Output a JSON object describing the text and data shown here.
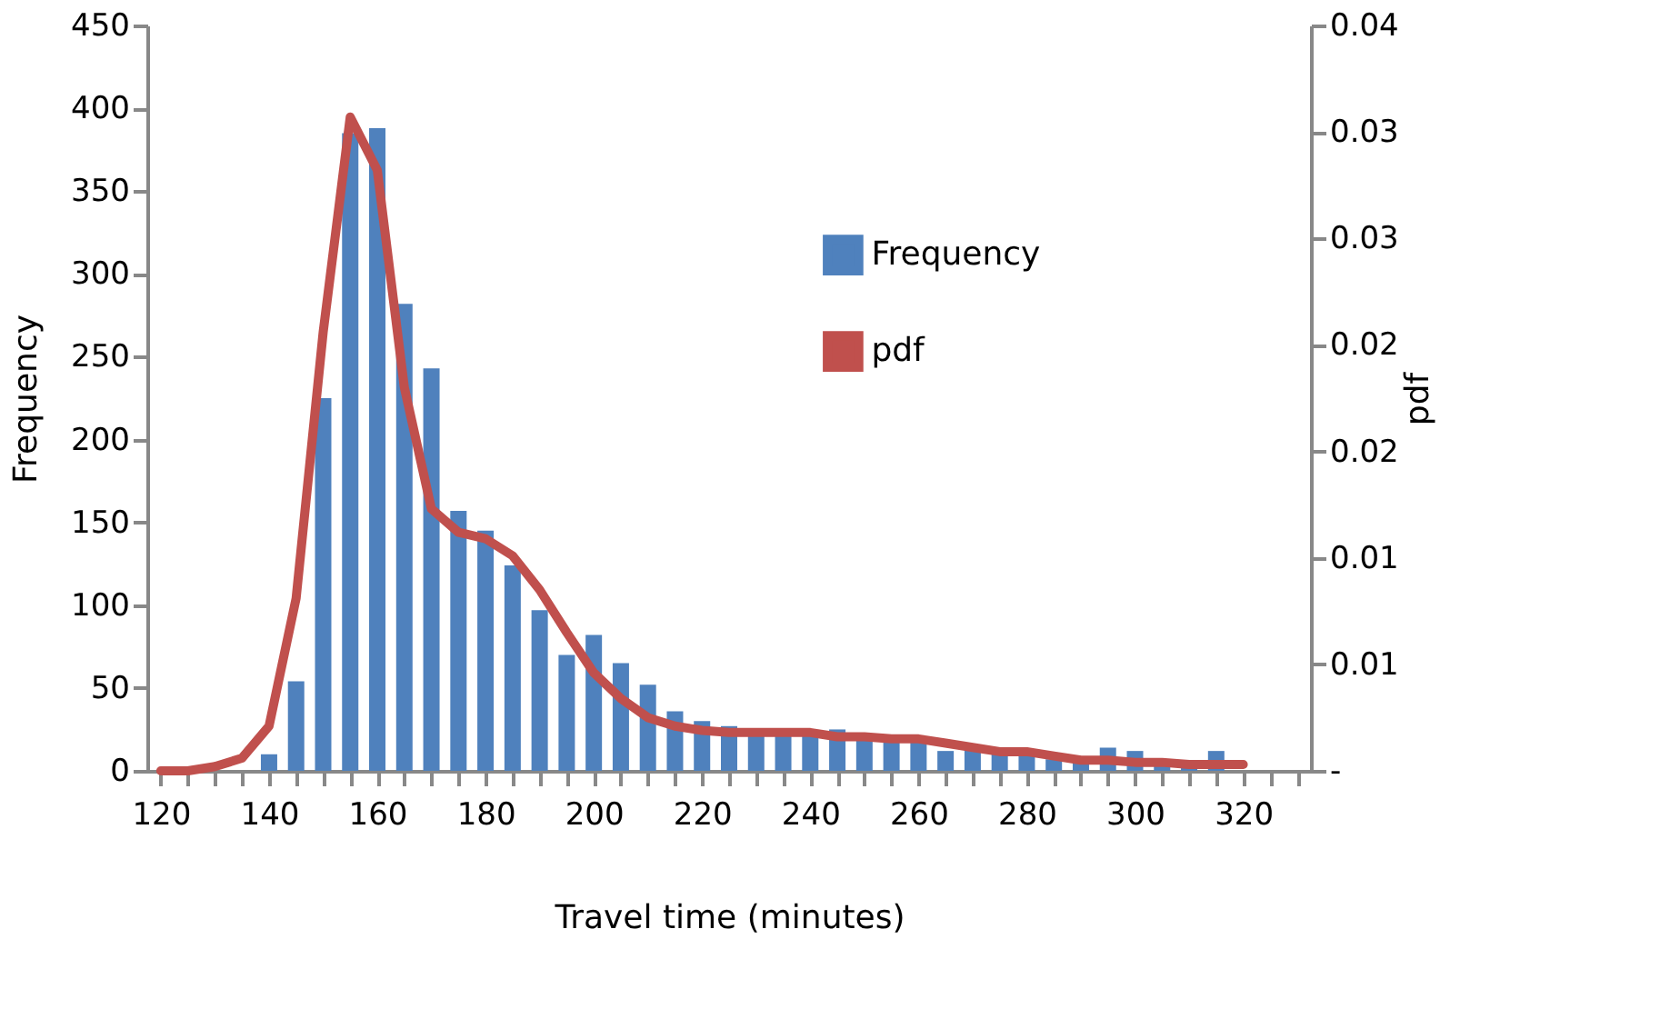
{
  "chart_data": {
    "type": "bar",
    "xlabel": "Travel time (minutes)",
    "ylabel": "Frequency",
    "y2label": "pdf",
    "x": [
      120,
      125,
      130,
      135,
      140,
      145,
      150,
      155,
      160,
      165,
      170,
      175,
      180,
      185,
      190,
      195,
      200,
      205,
      210,
      215,
      220,
      225,
      230,
      235,
      240,
      245,
      250,
      255,
      260,
      265,
      270,
      275,
      280,
      285,
      290,
      295,
      300,
      305,
      310,
      315,
      320
    ],
    "series": [
      {
        "name": "Frequency",
        "color": "#4f81bd",
        "values": [
          0,
          0,
          0,
          0,
          10,
          54,
          225,
          385,
          388,
          282,
          243,
          157,
          145,
          124,
          97,
          70,
          82,
          65,
          52,
          36,
          30,
          27,
          22,
          22,
          22,
          25,
          20,
          17,
          17,
          12,
          13,
          10,
          9,
          7,
          5,
          14,
          12,
          3,
          2,
          12,
          0
        ]
      },
      {
        "name": "pdf",
        "type": "line",
        "axis": "y2",
        "color": "#c0504d",
        "values": [
          0,
          0,
          0.0002,
          0.0006,
          0.0021,
          0.0081,
          0.0206,
          0.0307,
          0.0282,
          0.018,
          0.0123,
          0.0112,
          0.0109,
          0.0101,
          0.0085,
          0.0065,
          0.0046,
          0.0034,
          0.0025,
          0.0021,
          0.0019,
          0.0018,
          0.0018,
          0.0018,
          0.0018,
          0.0016,
          0.0016,
          0.0015,
          0.0015,
          0.0013,
          0.0011,
          0.0009,
          0.0009,
          0.0007,
          0.0005,
          0.0005,
          0.0004,
          0.0004,
          0.0003,
          0.0003,
          0.0003
        ]
      }
    ],
    "xlim": [
      117.5,
      332.5
    ],
    "xticks": [
      120,
      {
        "value": 125,
        "label": null
      },
      {
        "value": 130,
        "label": null
      },
      {
        "value": 135,
        "label": null
      },
      140,
      {
        "value": 145,
        "label": null
      },
      {
        "value": 150,
        "label": null
      },
      {
        "value": 155,
        "label": null
      },
      160,
      {
        "value": 165,
        "label": null
      },
      {
        "value": 170,
        "label": null
      },
      {
        "value": 175,
        "label": null
      },
      180,
      {
        "value": 185,
        "label": null
      },
      {
        "value": 190,
        "label": null
      },
      {
        "value": 195,
        "label": null
      },
      200,
      {
        "value": 205,
        "label": null
      },
      {
        "value": 210,
        "label": null
      },
      {
        "value": 215,
        "label": null
      },
      220,
      {
        "value": 225,
        "label": null
      },
      {
        "value": 230,
        "label": null
      },
      {
        "value": 235,
        "label": null
      },
      240,
      {
        "value": 245,
        "label": null
      },
      {
        "value": 250,
        "label": null
      },
      {
        "value": 255,
        "label": null
      },
      260,
      {
        "value": 265,
        "label": null
      },
      {
        "value": 270,
        "label": null
      },
      {
        "value": 275,
        "label": null
      },
      280,
      {
        "value": 285,
        "label": null
      },
      {
        "value": 290,
        "label": null
      },
      {
        "value": 295,
        "label": null
      },
      300,
      {
        "value": 305,
        "label": null
      },
      {
        "value": 310,
        "label": null
      },
      {
        "value": 315,
        "label": null
      },
      320,
      {
        "value": 325,
        "label": null
      },
      {
        "value": 330,
        "label": null
      }
    ],
    "ylim": [
      0,
      450
    ],
    "yticks": [
      0,
      50,
      100,
      150,
      200,
      250,
      300,
      350,
      400,
      450
    ],
    "y2lim": [
      0,
      0.035
    ],
    "y2ticks": [
      {
        "value": 0,
        "label": "-"
      },
      {
        "value": 0.005,
        "label": "0.01"
      },
      {
        "value": 0.01,
        "label": "0.01"
      },
      {
        "value": 0.015,
        "label": "0.02"
      },
      {
        "value": 0.02,
        "label": "0.02"
      },
      {
        "value": 0.025,
        "label": "0.03"
      },
      {
        "value": 0.03,
        "label": "0.03"
      },
      {
        "value": 0.035,
        "label": "0.04"
      }
    ],
    "grid": false,
    "legend": "top right",
    "marker": "none",
    "line_style": "solid"
  }
}
